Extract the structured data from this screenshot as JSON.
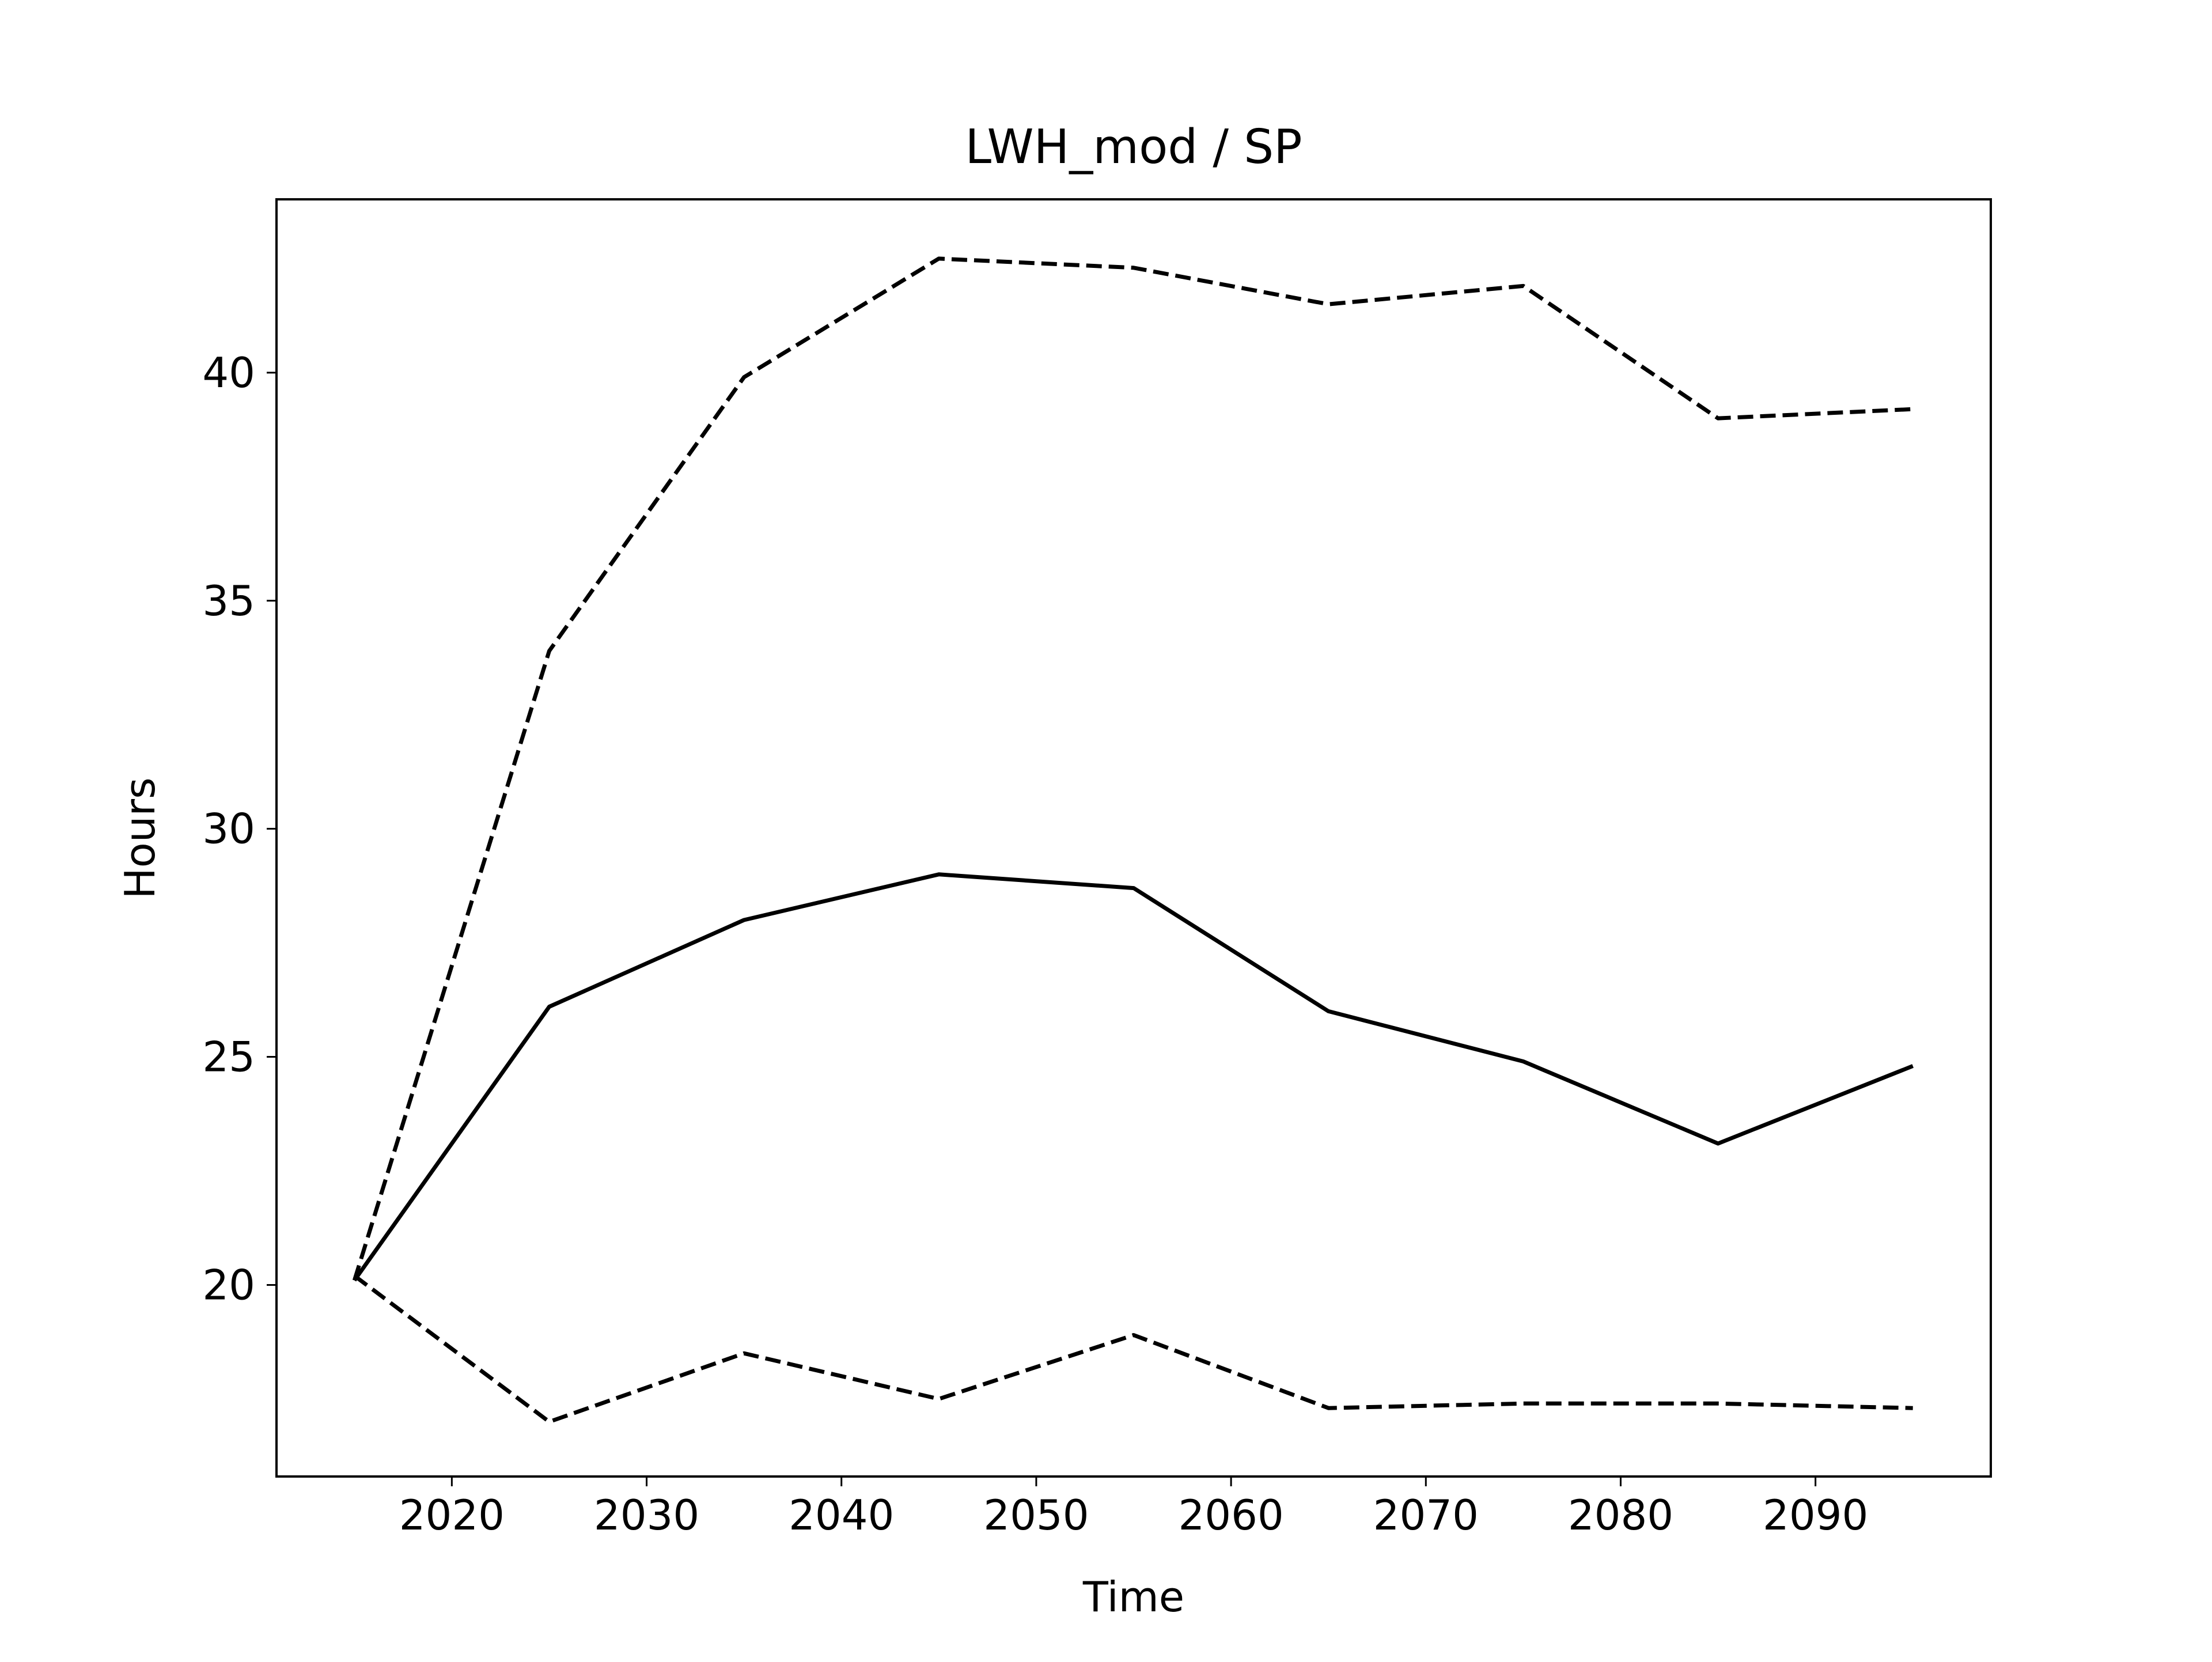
{
  "chart_data": {
    "type": "line",
    "title": "LWH_mod / SP",
    "xlabel": "Time",
    "ylabel": "Hours",
    "xlim": [
      2011,
      2099
    ],
    "ylim": [
      15.8,
      43.8
    ],
    "xticks": [
      2020,
      2030,
      2040,
      2050,
      2060,
      2070,
      2080,
      2090
    ],
    "yticks": [
      20,
      25,
      30,
      35,
      40
    ],
    "grid": false,
    "x": [
      2015,
      2025,
      2035,
      2045,
      2055,
      2065,
      2075,
      2085,
      2095
    ],
    "series": [
      {
        "style": "dashed",
        "color": "#000000",
        "values": [
          20.1,
          33.9,
          39.9,
          42.5,
          42.3,
          41.5,
          41.9,
          39.0,
          39.2
        ]
      },
      {
        "style": "solid",
        "color": "#000000",
        "values": [
          20.1,
          26.1,
          28.0,
          29.0,
          28.7,
          26.0,
          24.9,
          23.1,
          24.8
        ]
      },
      {
        "style": "dashed",
        "color": "#000000",
        "values": [
          20.2,
          17.0,
          18.5,
          17.5,
          18.9,
          17.3,
          17.4,
          17.4,
          17.3
        ]
      }
    ]
  }
}
